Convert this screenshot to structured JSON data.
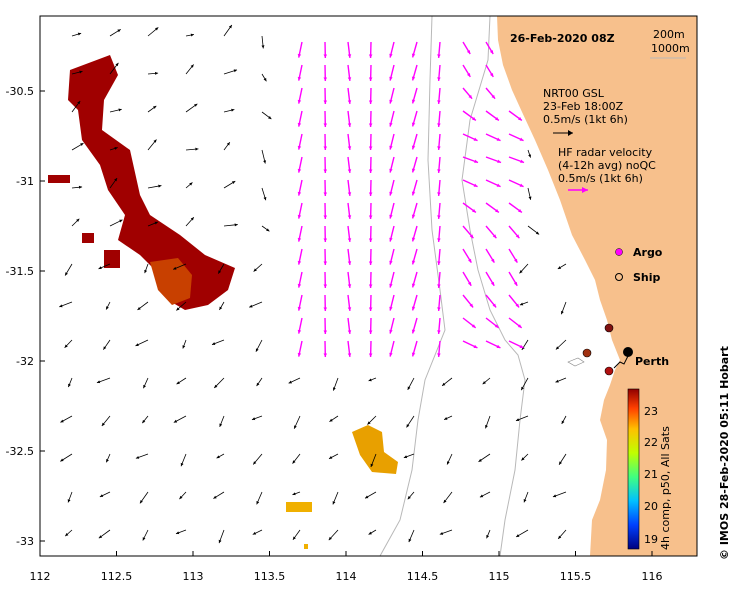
{
  "map": {
    "title": "26-Feb-2020 08Z",
    "scale_labels": [
      "200m",
      "1000m"
    ],
    "lon_ticks": [
      "112",
      "112.5",
      "113",
      "113.5",
      "114",
      "114.5",
      "115",
      "115.5",
      "116"
    ],
    "lat_ticks": [
      "-30.5",
      "-31",
      "-31.5",
      "-32",
      "-32.5",
      "-33"
    ],
    "place_label": "Perth",
    "land_color": "#f7c08c",
    "arrow_color_model": "#000000",
    "arrow_color_radar": "#ff00ff"
  },
  "legend": {
    "model": [
      "NRT00 GSL",
      "23-Feb 18:00Z",
      "0.5m/s (1kt 6h)"
    ],
    "radar": [
      "HF radar velocity",
      "(4-12h avg) noQC",
      "0.5m/s (1kt 6h)"
    ],
    "argo_label": "Argo",
    "ship_label": "Ship"
  },
  "colorbar": {
    "ticks": [
      "23",
      "22",
      "21",
      "20",
      "19"
    ],
    "caption": "4h comp, p50, All Sats"
  },
  "credit": "© IMOS 28-Feb-2020 05:11 Hobart"
}
